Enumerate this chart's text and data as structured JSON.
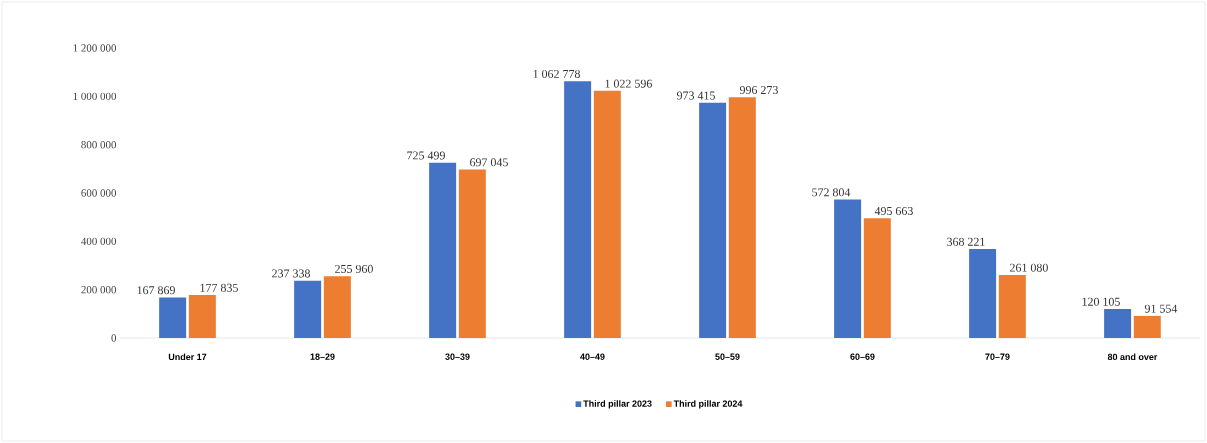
{
  "chart_data": {
    "type": "bar",
    "categories": [
      "Under 17",
      "18–29",
      "30–39",
      "40–49",
      "50–59",
      "60–69",
      "70–79",
      "80 and over"
    ],
    "series": [
      {
        "name": "Third pillar 2023",
        "color": "#4472c4",
        "values": [
          167869,
          237338,
          725499,
          1062778,
          973415,
          572804,
          368221,
          120105
        ],
        "value_labels": [
          "167 869",
          "237 338",
          "725 499",
          "1 062 778",
          "973 415",
          "572 804",
          "368 221",
          "120 105"
        ]
      },
      {
        "name": "Third pillar 2024",
        "color": "#ed7d31",
        "values": [
          177835,
          255960,
          697045,
          1022596,
          996273,
          495663,
          261080,
          91554
        ],
        "value_labels": [
          "177 835",
          "255 960",
          "697 045",
          "1 022 596",
          "996 273",
          "495 663",
          "261 080",
          "91 554"
        ]
      }
    ],
    "ylim": [
      0,
      1200000
    ],
    "yticks": [
      {
        "value": 0,
        "label": "0"
      },
      {
        "value": 200000,
        "label": "200 000"
      },
      {
        "value": 400000,
        "label": "400 000"
      },
      {
        "value": 600000,
        "label": "600 000"
      },
      {
        "value": 800000,
        "label": "800 000"
      },
      {
        "value": 1000000,
        "label": "1 000 000"
      },
      {
        "value": 1200000,
        "label": "1 200 000"
      }
    ],
    "grid": false,
    "legend": "bottom"
  }
}
